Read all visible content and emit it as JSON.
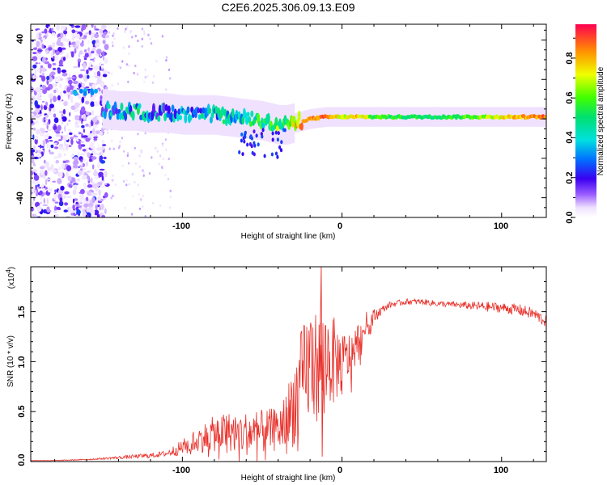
{
  "title": "C2E6.2025.306.09.13.E09",
  "chart_data": [
    {
      "type": "heatmap",
      "name": "spectrogram",
      "xlabel": "Height of straight line (km)",
      "ylabel": "Frequency (Hz)",
      "xlim": [
        -195,
        128
      ],
      "ylim": [
        -50,
        48
      ],
      "xticks": [
        -100,
        0,
        100
      ],
      "xtick_labels": [
        "-100",
        "0",
        "100"
      ],
      "yticks": [
        -40,
        -20,
        0,
        20,
        40
      ],
      "ytick_labels": [
        "-40",
        "-20",
        "0",
        "20",
        "40"
      ],
      "colorbar": {
        "label": "Normalized spectral amplitude",
        "range": [
          0.0,
          0.97
        ],
        "ticks": [
          0.0,
          0.2,
          0.4,
          0.6,
          0.8
        ],
        "tick_labels": [
          "0.0",
          "0.2",
          "0.4",
          "0.6",
          "0.8"
        ]
      },
      "ridge": {
        "x": [
          -150,
          -140,
          -130,
          -120,
          -110,
          -100,
          -90,
          -80,
          -70,
          -60,
          -50,
          -40,
          -35,
          -30,
          -20,
          -10,
          0,
          10,
          20,
          40,
          60,
          80,
          100,
          128
        ],
        "freq": [
          5,
          4,
          4,
          3,
          3,
          2,
          2,
          2,
          1,
          0,
          -1,
          -3,
          -3,
          -2,
          0,
          1,
          1,
          1,
          1,
          1,
          1,
          1,
          1,
          1
        ],
        "amplitude": [
          0.25,
          0.35,
          0.4,
          0.35,
          0.3,
          0.4,
          0.35,
          0.35,
          0.45,
          0.4,
          0.5,
          0.6,
          0.55,
          0.7,
          0.85,
          0.9,
          0.7,
          0.8,
          0.6,
          0.55,
          0.55,
          0.6,
          0.75,
          0.9
        ]
      }
    },
    {
      "type": "line",
      "name": "snr",
      "xlabel": "Height of straight line (km)",
      "ylabel": "SNR (10 * v/v)",
      "y_multiplier": "(x10",
      "y_multiplier_exp": "4",
      "y_multiplier_close": ")",
      "xlim": [
        -195,
        128
      ],
      "ylim": [
        0,
        1.95
      ],
      "xticks": [
        -100,
        0,
        100
      ],
      "xtick_labels": [
        "-100",
        "0",
        "100"
      ],
      "yticks": [
        0,
        0.5,
        1.0,
        1.5
      ],
      "ytick_labels": [
        "0.0",
        "0.5",
        "1.0",
        "1.5"
      ],
      "series": [
        {
          "name": "SNR",
          "color": "#e8302a",
          "x": [
            -195,
            -180,
            -160,
            -150,
            -140,
            -130,
            -120,
            -110,
            -100,
            -90,
            -80,
            -70,
            -60,
            -50,
            -40,
            -35,
            -30,
            -25,
            -20,
            -15,
            -10,
            -5,
            0,
            5,
            10,
            15,
            20,
            25,
            30,
            40,
            50,
            60,
            70,
            80,
            90,
            100,
            110,
            120,
            128
          ],
          "y": [
            0.01,
            0.01,
            0.02,
            0.03,
            0.04,
            0.05,
            0.06,
            0.08,
            0.14,
            0.22,
            0.28,
            0.3,
            0.28,
            0.3,
            0.32,
            0.4,
            0.6,
            0.8,
            1.0,
            0.95,
            1.05,
            1.0,
            1.0,
            1.05,
            1.2,
            1.35,
            1.45,
            1.52,
            1.57,
            1.6,
            1.6,
            1.58,
            1.57,
            1.56,
            1.55,
            1.54,
            1.52,
            1.48,
            1.4
          ],
          "noise": [
            0.0,
            0.003,
            0.006,
            0.01,
            0.015,
            0.02,
            0.025,
            0.03,
            0.08,
            0.13,
            0.18,
            0.2,
            0.22,
            0.22,
            0.22,
            0.3,
            0.45,
            0.55,
            0.6,
            0.55,
            0.5,
            0.45,
            0.3,
            0.25,
            0.2,
            0.15,
            0.08,
            0.04,
            0.03,
            0.03,
            0.03,
            0.03,
            0.03,
            0.04,
            0.05,
            0.05,
            0.06,
            0.06,
            0.06
          ],
          "spike": {
            "x": -13,
            "y": 1.95
          }
        }
      ]
    }
  ]
}
